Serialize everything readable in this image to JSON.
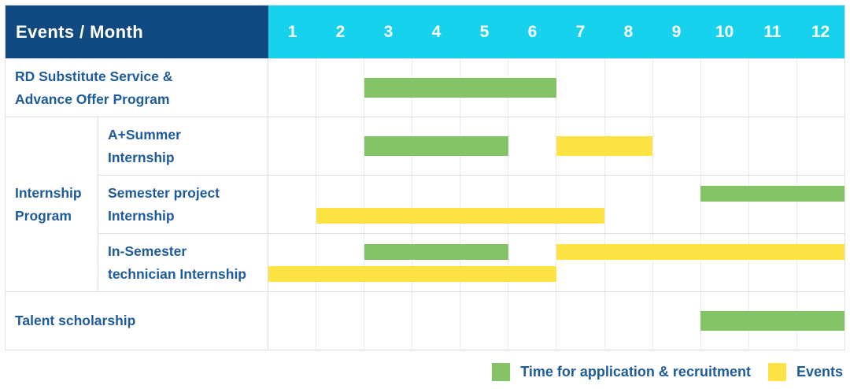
{
  "header": {
    "title": "Events / Month"
  },
  "colors": {
    "header_bg": "#114a80",
    "months_bg": "#16d2ec",
    "application": "#85c466",
    "event": "#fde343",
    "label_text": "#1d5b9c",
    "grid_line": "#dfdfdf"
  },
  "chart_data": {
    "type": "gantt",
    "title": "Events / Month",
    "months": [
      "1",
      "2",
      "3",
      "4",
      "5",
      "6",
      "7",
      "8",
      "9",
      "10",
      "11",
      "12"
    ],
    "x_range": [
      1,
      12
    ],
    "grid": true,
    "row_group": {
      "label": "Internship\nProgram",
      "spans_rows": [
        1,
        2,
        3
      ]
    },
    "rows": [
      {
        "label": "RD Substitute Service &\nAdvance Offer Program",
        "bars": [
          {
            "type": "application",
            "start_month": 3,
            "end_month": 6,
            "lane": "center"
          }
        ]
      },
      {
        "label": "A+Summer\nInternship",
        "bars": [
          {
            "type": "application",
            "start_month": 3,
            "end_month": 5,
            "lane": "center"
          },
          {
            "type": "event",
            "start_month": 7,
            "end_month": 8,
            "lane": "center"
          }
        ]
      },
      {
        "label": "Semester project\nInternship",
        "bars": [
          {
            "type": "application",
            "start_month": 10,
            "end_month": 12,
            "lane": "top"
          },
          {
            "type": "event",
            "start_month": 2,
            "end_month": 7,
            "lane": "bottom"
          }
        ]
      },
      {
        "label": "In-Semester\ntechnician Internship",
        "bars": [
          {
            "type": "application",
            "start_month": 3,
            "end_month": 5,
            "lane": "top"
          },
          {
            "type": "event",
            "start_month": 7,
            "end_month": 12,
            "lane": "top"
          },
          {
            "type": "event",
            "start_month": 1,
            "end_month": 6,
            "lane": "bottom"
          }
        ]
      },
      {
        "label": "Talent scholarship",
        "bars": [
          {
            "type": "application",
            "start_month": 10,
            "end_month": 12,
            "lane": "center"
          }
        ]
      }
    ],
    "legend": [
      {
        "type": "application",
        "label": "Time for application & recruitment"
      },
      {
        "type": "event",
        "label": "Events"
      }
    ],
    "legend_position": "bottom-right"
  }
}
